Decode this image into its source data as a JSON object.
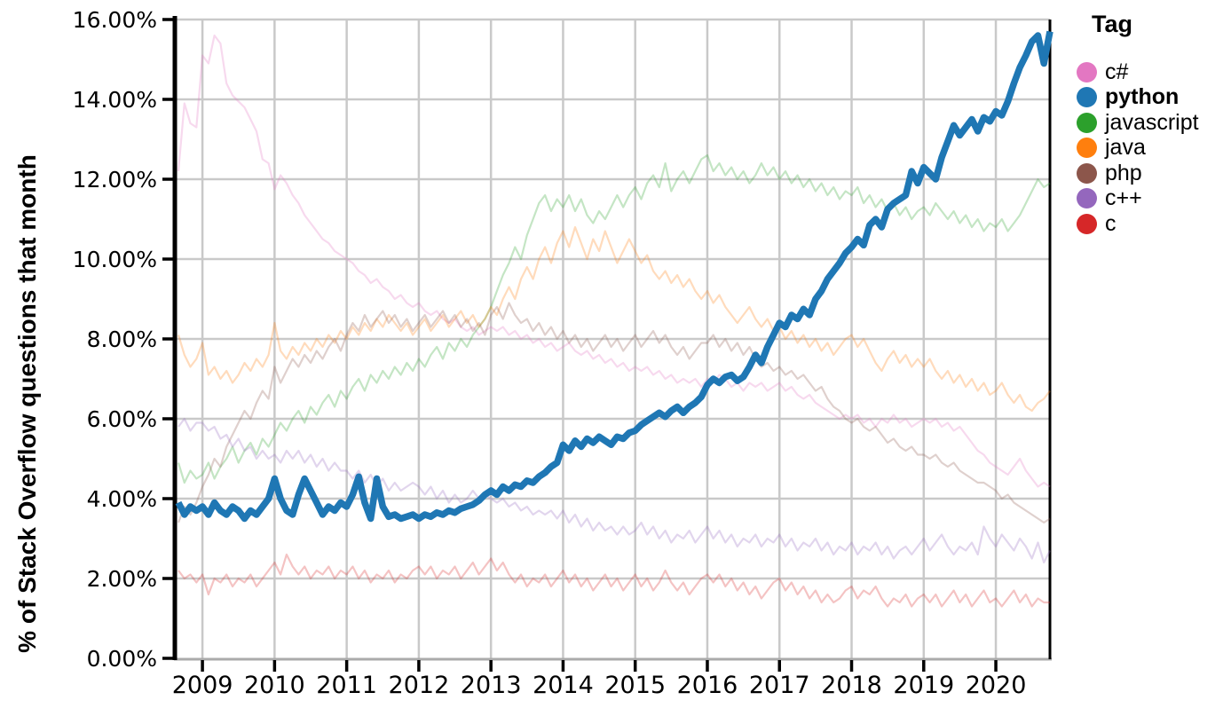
{
  "figure": {
    "background": "#ffffff",
    "grid_color": "#c9c9c9",
    "axis_color": "#000000",
    "baseline_color": "#ababab"
  },
  "chart_data": {
    "type": "line",
    "ylabel": "% of Stack Overflow questions that month",
    "xlabel": "",
    "x_start": "2008-09",
    "x_end": "2020-10",
    "interval": "monthly",
    "n_points": 146,
    "ylim": [
      0,
      16
    ],
    "grid": true,
    "legend": {
      "title": "Tag",
      "position": "right"
    },
    "y_ticks": [
      {
        "value": 0,
        "label": "0.00%"
      },
      {
        "value": 2,
        "label": "2.00%"
      },
      {
        "value": 4,
        "label": "4.00%"
      },
      {
        "value": 6,
        "label": "6.00%"
      },
      {
        "value": 8,
        "label": "8.00%"
      },
      {
        "value": 10,
        "label": "10.00%"
      },
      {
        "value": 12,
        "label": "12.00%"
      },
      {
        "value": 14,
        "label": "14.00%"
      },
      {
        "value": 16,
        "label": "16.00%"
      }
    ],
    "x_ticks": [
      {
        "value": 2009,
        "label": "2009"
      },
      {
        "value": 2010,
        "label": "2010"
      },
      {
        "value": 2011,
        "label": "2011"
      },
      {
        "value": 2012,
        "label": "2012"
      },
      {
        "value": 2013,
        "label": "2013"
      },
      {
        "value": 2014,
        "label": "2014"
      },
      {
        "value": 2015,
        "label": "2015"
      },
      {
        "value": 2016,
        "label": "2016"
      },
      {
        "value": 2017,
        "label": "2017"
      },
      {
        "value": 2018,
        "label": "2018"
      },
      {
        "value": 2019,
        "label": "2019"
      },
      {
        "value": 2020,
        "label": "2020"
      }
    ],
    "series": [
      {
        "name": "c#",
        "color": "#e377c2",
        "opacity": 0.28,
        "line_width": 2.2,
        "emphasis": false,
        "values": [
          12.2,
          13.9,
          13.4,
          13.3,
          15.1,
          14.9,
          15.6,
          15.4,
          14.4,
          14.1,
          13.95,
          13.8,
          13.5,
          13.2,
          12.5,
          12.4,
          11.75,
          12.1,
          11.9,
          11.6,
          11.4,
          11.1,
          10.9,
          10.7,
          10.5,
          10.4,
          10.2,
          10.1,
          10.0,
          9.9,
          9.7,
          9.6,
          9.4,
          9.5,
          9.3,
          9.2,
          9.0,
          9.1,
          8.9,
          8.8,
          8.9,
          8.7,
          8.6,
          8.7,
          8.5,
          8.4,
          8.5,
          8.3,
          8.2,
          8.3,
          8.1,
          8.2,
          8.3,
          8.2,
          8.3,
          8.1,
          8.2,
          8.0,
          8.1,
          7.9,
          8.0,
          7.8,
          7.9,
          7.7,
          7.8,
          7.9,
          7.7,
          7.6,
          7.7,
          7.5,
          7.6,
          7.4,
          7.5,
          7.3,
          7.4,
          7.2,
          7.3,
          7.2,
          7.3,
          7.1,
          7.2,
          7.0,
          7.1,
          6.9,
          7.0,
          6.9,
          7.0,
          6.8,
          7.0,
          6.9,
          7.1,
          7.0,
          6.8,
          6.9,
          6.7,
          6.9,
          6.8,
          6.9,
          6.7,
          6.8,
          6.9,
          6.7,
          6.8,
          6.6,
          6.5,
          6.6,
          6.4,
          6.3,
          6.2,
          6.1,
          6.0,
          6.1,
          6.0,
          6.1,
          5.9,
          6.0,
          5.8,
          6.0,
          5.9,
          6.1,
          5.9,
          6.0,
          5.8,
          5.9,
          6.0,
          5.9,
          6.0,
          5.8,
          5.9,
          5.7,
          5.8,
          5.6,
          5.4,
          5.2,
          5.1,
          4.9,
          4.8,
          4.7,
          4.6,
          4.8,
          5.0,
          4.7,
          4.5,
          4.3,
          4.4,
          4.3
        ]
      },
      {
        "name": "python",
        "color": "#1f77b4",
        "opacity": 1.0,
        "line_width": 7.5,
        "emphasis": true,
        "values": [
          3.9,
          3.6,
          3.8,
          3.7,
          3.8,
          3.6,
          3.9,
          3.7,
          3.6,
          3.8,
          3.7,
          3.5,
          3.7,
          3.6,
          3.8,
          4.0,
          4.5,
          4.0,
          3.7,
          3.6,
          4.1,
          4.5,
          4.2,
          3.9,
          3.6,
          3.8,
          3.7,
          3.9,
          3.8,
          4.1,
          4.55,
          3.9,
          3.5,
          4.5,
          3.8,
          3.55,
          3.6,
          3.5,
          3.55,
          3.6,
          3.5,
          3.6,
          3.55,
          3.65,
          3.6,
          3.7,
          3.65,
          3.75,
          3.8,
          3.85,
          3.95,
          4.1,
          4.2,
          4.1,
          4.3,
          4.2,
          4.35,
          4.3,
          4.45,
          4.4,
          4.55,
          4.65,
          4.8,
          4.9,
          5.35,
          5.2,
          5.45,
          5.3,
          5.5,
          5.4,
          5.55,
          5.45,
          5.35,
          5.55,
          5.5,
          5.65,
          5.7,
          5.85,
          5.95,
          6.05,
          6.15,
          6.05,
          6.2,
          6.3,
          6.15,
          6.3,
          6.4,
          6.55,
          6.85,
          7.0,
          6.9,
          7.05,
          7.1,
          6.95,
          7.05,
          7.3,
          7.6,
          7.4,
          7.8,
          8.1,
          8.4,
          8.3,
          8.6,
          8.5,
          8.75,
          8.6,
          9.0,
          9.2,
          9.5,
          9.7,
          9.9,
          10.15,
          10.3,
          10.5,
          10.35,
          10.85,
          11.0,
          10.8,
          11.25,
          11.4,
          11.5,
          11.6,
          12.2,
          11.9,
          12.3,
          12.15,
          12.0,
          12.55,
          12.95,
          13.35,
          13.1,
          13.3,
          13.5,
          13.2,
          13.55,
          13.45,
          13.7,
          13.6,
          13.95,
          14.4,
          14.8,
          15.1,
          15.45,
          15.6,
          14.9,
          15.7
        ]
      },
      {
        "name": "javascript",
        "color": "#2ca02c",
        "opacity": 0.28,
        "line_width": 2.2,
        "emphasis": false,
        "values": [
          4.9,
          4.4,
          4.7,
          4.5,
          4.6,
          4.9,
          4.5,
          4.8,
          5.0,
          5.3,
          4.9,
          5.2,
          5.4,
          5.1,
          5.5,
          5.3,
          5.6,
          5.9,
          5.7,
          6.0,
          6.2,
          5.9,
          6.3,
          6.1,
          6.4,
          6.6,
          6.3,
          6.7,
          6.5,
          6.8,
          7.0,
          6.7,
          7.1,
          6.9,
          7.2,
          7.0,
          7.3,
          7.1,
          7.4,
          7.2,
          7.5,
          7.3,
          7.6,
          7.8,
          7.5,
          7.9,
          7.7,
          8.0,
          7.8,
          8.1,
          8.3,
          8.5,
          8.8,
          9.2,
          9.6,
          9.9,
          10.3,
          10.0,
          10.6,
          11.0,
          11.4,
          11.6,
          11.2,
          11.5,
          11.3,
          11.6,
          11.2,
          11.5,
          11.1,
          10.9,
          11.2,
          11.0,
          11.3,
          11.6,
          11.3,
          11.6,
          11.8,
          11.5,
          11.9,
          12.1,
          11.8,
          12.4,
          11.7,
          12.0,
          12.2,
          11.9,
          12.2,
          12.5,
          12.6,
          12.2,
          12.4,
          12.1,
          12.3,
          12.0,
          12.2,
          11.9,
          12.1,
          12.4,
          12.1,
          12.3,
          12.0,
          12.2,
          11.9,
          12.1,
          11.8,
          12.0,
          11.7,
          11.9,
          11.6,
          11.8,
          11.5,
          11.7,
          11.6,
          11.8,
          11.4,
          11.6,
          11.3,
          11.5,
          11.2,
          11.4,
          11.1,
          11.3,
          11.0,
          11.2,
          11.3,
          11.1,
          11.4,
          11.2,
          11.0,
          11.2,
          10.9,
          11.1,
          10.8,
          11.0,
          10.7,
          10.9,
          10.8,
          11.0,
          10.7,
          10.9,
          11.1,
          11.4,
          11.7,
          12.0,
          11.8,
          11.9
        ]
      },
      {
        "name": "java",
        "color": "#ff7f0e",
        "opacity": 0.28,
        "line_width": 2.2,
        "emphasis": false,
        "values": [
          8.1,
          7.6,
          7.3,
          7.5,
          7.9,
          7.1,
          7.3,
          7.0,
          7.2,
          6.9,
          7.1,
          7.4,
          7.2,
          7.5,
          7.3,
          7.6,
          8.4,
          7.7,
          7.5,
          7.8,
          7.6,
          7.9,
          7.7,
          8.0,
          7.8,
          8.1,
          7.9,
          8.2,
          8.0,
          8.3,
          8.1,
          8.4,
          8.2,
          8.5,
          8.3,
          8.6,
          8.4,
          8.2,
          8.4,
          8.1,
          8.3,
          8.5,
          8.2,
          8.4,
          8.6,
          8.3,
          8.5,
          8.7,
          8.4,
          8.6,
          8.3,
          8.5,
          8.8,
          8.6,
          9.0,
          9.3,
          9.0,
          9.5,
          9.8,
          9.5,
          10.0,
          10.3,
          9.9,
          10.4,
          10.7,
          10.3,
          10.8,
          10.4,
          10.0,
          10.5,
          10.2,
          10.7,
          10.3,
          9.9,
          10.2,
          10.5,
          10.2,
          9.9,
          10.1,
          9.7,
          9.5,
          9.7,
          9.4,
          9.6,
          9.3,
          9.5,
          9.2,
          9.0,
          9.2,
          8.9,
          9.1,
          8.8,
          8.6,
          8.4,
          8.6,
          8.8,
          8.5,
          8.3,
          8.5,
          8.2,
          8.3,
          8.0,
          8.2,
          7.9,
          8.1,
          7.8,
          8.0,
          7.7,
          7.9,
          7.6,
          7.8,
          8.0,
          8.1,
          7.8,
          8.0,
          7.7,
          7.4,
          7.2,
          7.5,
          7.7,
          7.4,
          7.6,
          7.3,
          7.5,
          7.3,
          7.5,
          7.2,
          7.0,
          7.2,
          6.9,
          7.1,
          6.8,
          7.0,
          6.7,
          6.9,
          6.6,
          6.7,
          6.9,
          6.6,
          6.4,
          6.6,
          6.3,
          6.2,
          6.4,
          6.5,
          6.7
        ]
      },
      {
        "name": "php",
        "color": "#8c564b",
        "opacity": 0.28,
        "line_width": 2.2,
        "emphasis": false,
        "values": [
          3.4,
          3.8,
          3.6,
          3.9,
          4.3,
          4.6,
          5.0,
          4.8,
          5.3,
          5.6,
          5.9,
          6.2,
          6.0,
          6.4,
          6.7,
          6.5,
          7.3,
          6.9,
          7.2,
          7.5,
          7.3,
          7.6,
          7.4,
          7.7,
          7.5,
          7.8,
          8.0,
          7.7,
          8.1,
          8.4,
          8.2,
          8.6,
          8.3,
          8.5,
          8.7,
          8.4,
          8.6,
          8.3,
          8.5,
          8.2,
          8.4,
          8.6,
          8.3,
          8.5,
          8.7,
          8.4,
          8.6,
          8.3,
          8.5,
          8.2,
          8.4,
          8.1,
          8.6,
          8.8,
          8.5,
          8.9,
          8.6,
          8.4,
          8.5,
          8.2,
          8.4,
          8.1,
          8.3,
          8.0,
          8.2,
          7.9,
          8.1,
          7.8,
          8.0,
          7.7,
          7.9,
          8.1,
          7.8,
          8.0,
          7.7,
          7.9,
          8.1,
          7.8,
          8.0,
          8.2,
          7.9,
          8.1,
          7.8,
          7.6,
          7.8,
          7.5,
          7.7,
          7.9,
          7.9,
          8.1,
          7.8,
          8.0,
          7.7,
          7.9,
          7.6,
          7.8,
          7.5,
          7.3,
          7.4,
          7.2,
          7.3,
          7.1,
          7.2,
          7.0,
          7.1,
          6.9,
          6.7,
          6.8,
          6.5,
          6.3,
          6.2,
          6.0,
          5.9,
          6.0,
          5.8,
          5.7,
          5.8,
          5.6,
          5.4,
          5.5,
          5.3,
          5.2,
          5.3,
          5.1,
          5.1,
          5.0,
          5.1,
          4.9,
          4.8,
          4.9,
          4.7,
          4.6,
          4.5,
          4.4,
          4.4,
          4.3,
          4.2,
          4.0,
          4.1,
          3.9,
          3.8,
          3.7,
          3.6,
          3.5,
          3.4,
          3.5
        ]
      },
      {
        "name": "c++",
        "color": "#9467bd",
        "opacity": 0.28,
        "line_width": 2.2,
        "emphasis": false,
        "values": [
          5.8,
          6.0,
          5.7,
          5.9,
          5.9,
          5.7,
          5.8,
          5.5,
          5.6,
          5.3,
          5.5,
          5.2,
          5.3,
          5.0,
          5.2,
          5.0,
          5.1,
          4.9,
          5.2,
          5.0,
          5.2,
          4.9,
          5.1,
          4.8,
          5.0,
          4.7,
          4.9,
          4.7,
          4.7,
          4.5,
          4.7,
          4.4,
          4.6,
          4.3,
          4.5,
          4.2,
          4.4,
          4.2,
          4.3,
          4.4,
          4.3,
          4.1,
          4.3,
          4.0,
          4.2,
          3.9,
          4.1,
          3.9,
          4.0,
          4.2,
          4.0,
          4.1,
          4.0,
          3.9,
          4.0,
          3.8,
          3.9,
          3.7,
          3.8,
          3.6,
          3.7,
          3.6,
          3.7,
          3.5,
          3.7,
          3.4,
          3.6,
          3.3,
          3.5,
          3.2,
          3.4,
          3.2,
          3.3,
          3.1,
          3.3,
          3.1,
          3.2,
          3.4,
          3.1,
          3.3,
          3.0,
          3.2,
          2.9,
          3.1,
          3.0,
          3.2,
          2.9,
          3.1,
          3.3,
          3.0,
          3.2,
          2.9,
          3.1,
          2.8,
          3.0,
          2.9,
          3.1,
          2.8,
          3.0,
          2.9,
          3.1,
          2.8,
          3.0,
          2.7,
          2.9,
          2.8,
          3.0,
          2.7,
          2.9,
          2.6,
          2.8,
          2.7,
          2.9,
          2.6,
          2.8,
          2.7,
          2.9,
          2.6,
          2.8,
          2.5,
          2.7,
          2.8,
          2.6,
          2.8,
          3.0,
          2.7,
          2.9,
          3.1,
          2.8,
          2.6,
          2.8,
          2.7,
          2.9,
          2.6,
          3.3,
          3.0,
          2.8,
          3.1,
          2.9,
          2.7,
          3.0,
          2.8,
          2.5,
          2.9,
          2.4,
          2.7
        ]
      },
      {
        "name": "c",
        "color": "#d62728",
        "opacity": 0.28,
        "line_width": 2.2,
        "emphasis": false,
        "values": [
          2.2,
          2.0,
          2.1,
          1.9,
          2.1,
          1.6,
          2.0,
          1.9,
          2.1,
          1.8,
          2.0,
          1.9,
          2.1,
          1.8,
          2.0,
          2.2,
          2.4,
          2.1,
          2.6,
          2.3,
          2.1,
          2.3,
          2.0,
          2.2,
          2.1,
          2.3,
          2.0,
          2.2,
          2.1,
          2.3,
          2.0,
          2.2,
          1.9,
          2.1,
          2.0,
          2.2,
          1.9,
          2.1,
          2.0,
          2.2,
          2.3,
          2.1,
          2.3,
          2.0,
          2.2,
          2.1,
          2.3,
          2.0,
          2.2,
          2.4,
          2.1,
          2.3,
          2.5,
          2.2,
          2.4,
          2.1,
          1.9,
          2.1,
          1.8,
          2.0,
          1.9,
          2.1,
          1.8,
          2.0,
          2.2,
          1.9,
          2.1,
          1.8,
          2.0,
          1.7,
          1.9,
          2.1,
          1.8,
          2.0,
          1.7,
          1.9,
          2.1,
          1.8,
          2.0,
          1.7,
          1.9,
          2.2,
          1.9,
          1.7,
          1.9,
          1.6,
          1.8,
          2.0,
          2.1,
          1.9,
          2.1,
          1.8,
          2.0,
          1.7,
          1.9,
          1.6,
          1.8,
          1.5,
          1.7,
          1.9,
          2.0,
          1.7,
          1.9,
          1.6,
          1.8,
          1.5,
          1.7,
          1.4,
          1.6,
          1.4,
          1.5,
          1.7,
          1.8,
          1.5,
          1.7,
          1.6,
          1.8,
          1.5,
          1.3,
          1.5,
          1.4,
          1.6,
          1.3,
          1.5,
          1.6,
          1.4,
          1.6,
          1.3,
          1.5,
          1.7,
          1.4,
          1.6,
          1.3,
          1.5,
          1.7,
          1.4,
          1.5,
          1.3,
          1.5,
          1.7,
          1.4,
          1.6,
          1.3,
          1.5,
          1.4,
          1.4
        ]
      }
    ]
  }
}
